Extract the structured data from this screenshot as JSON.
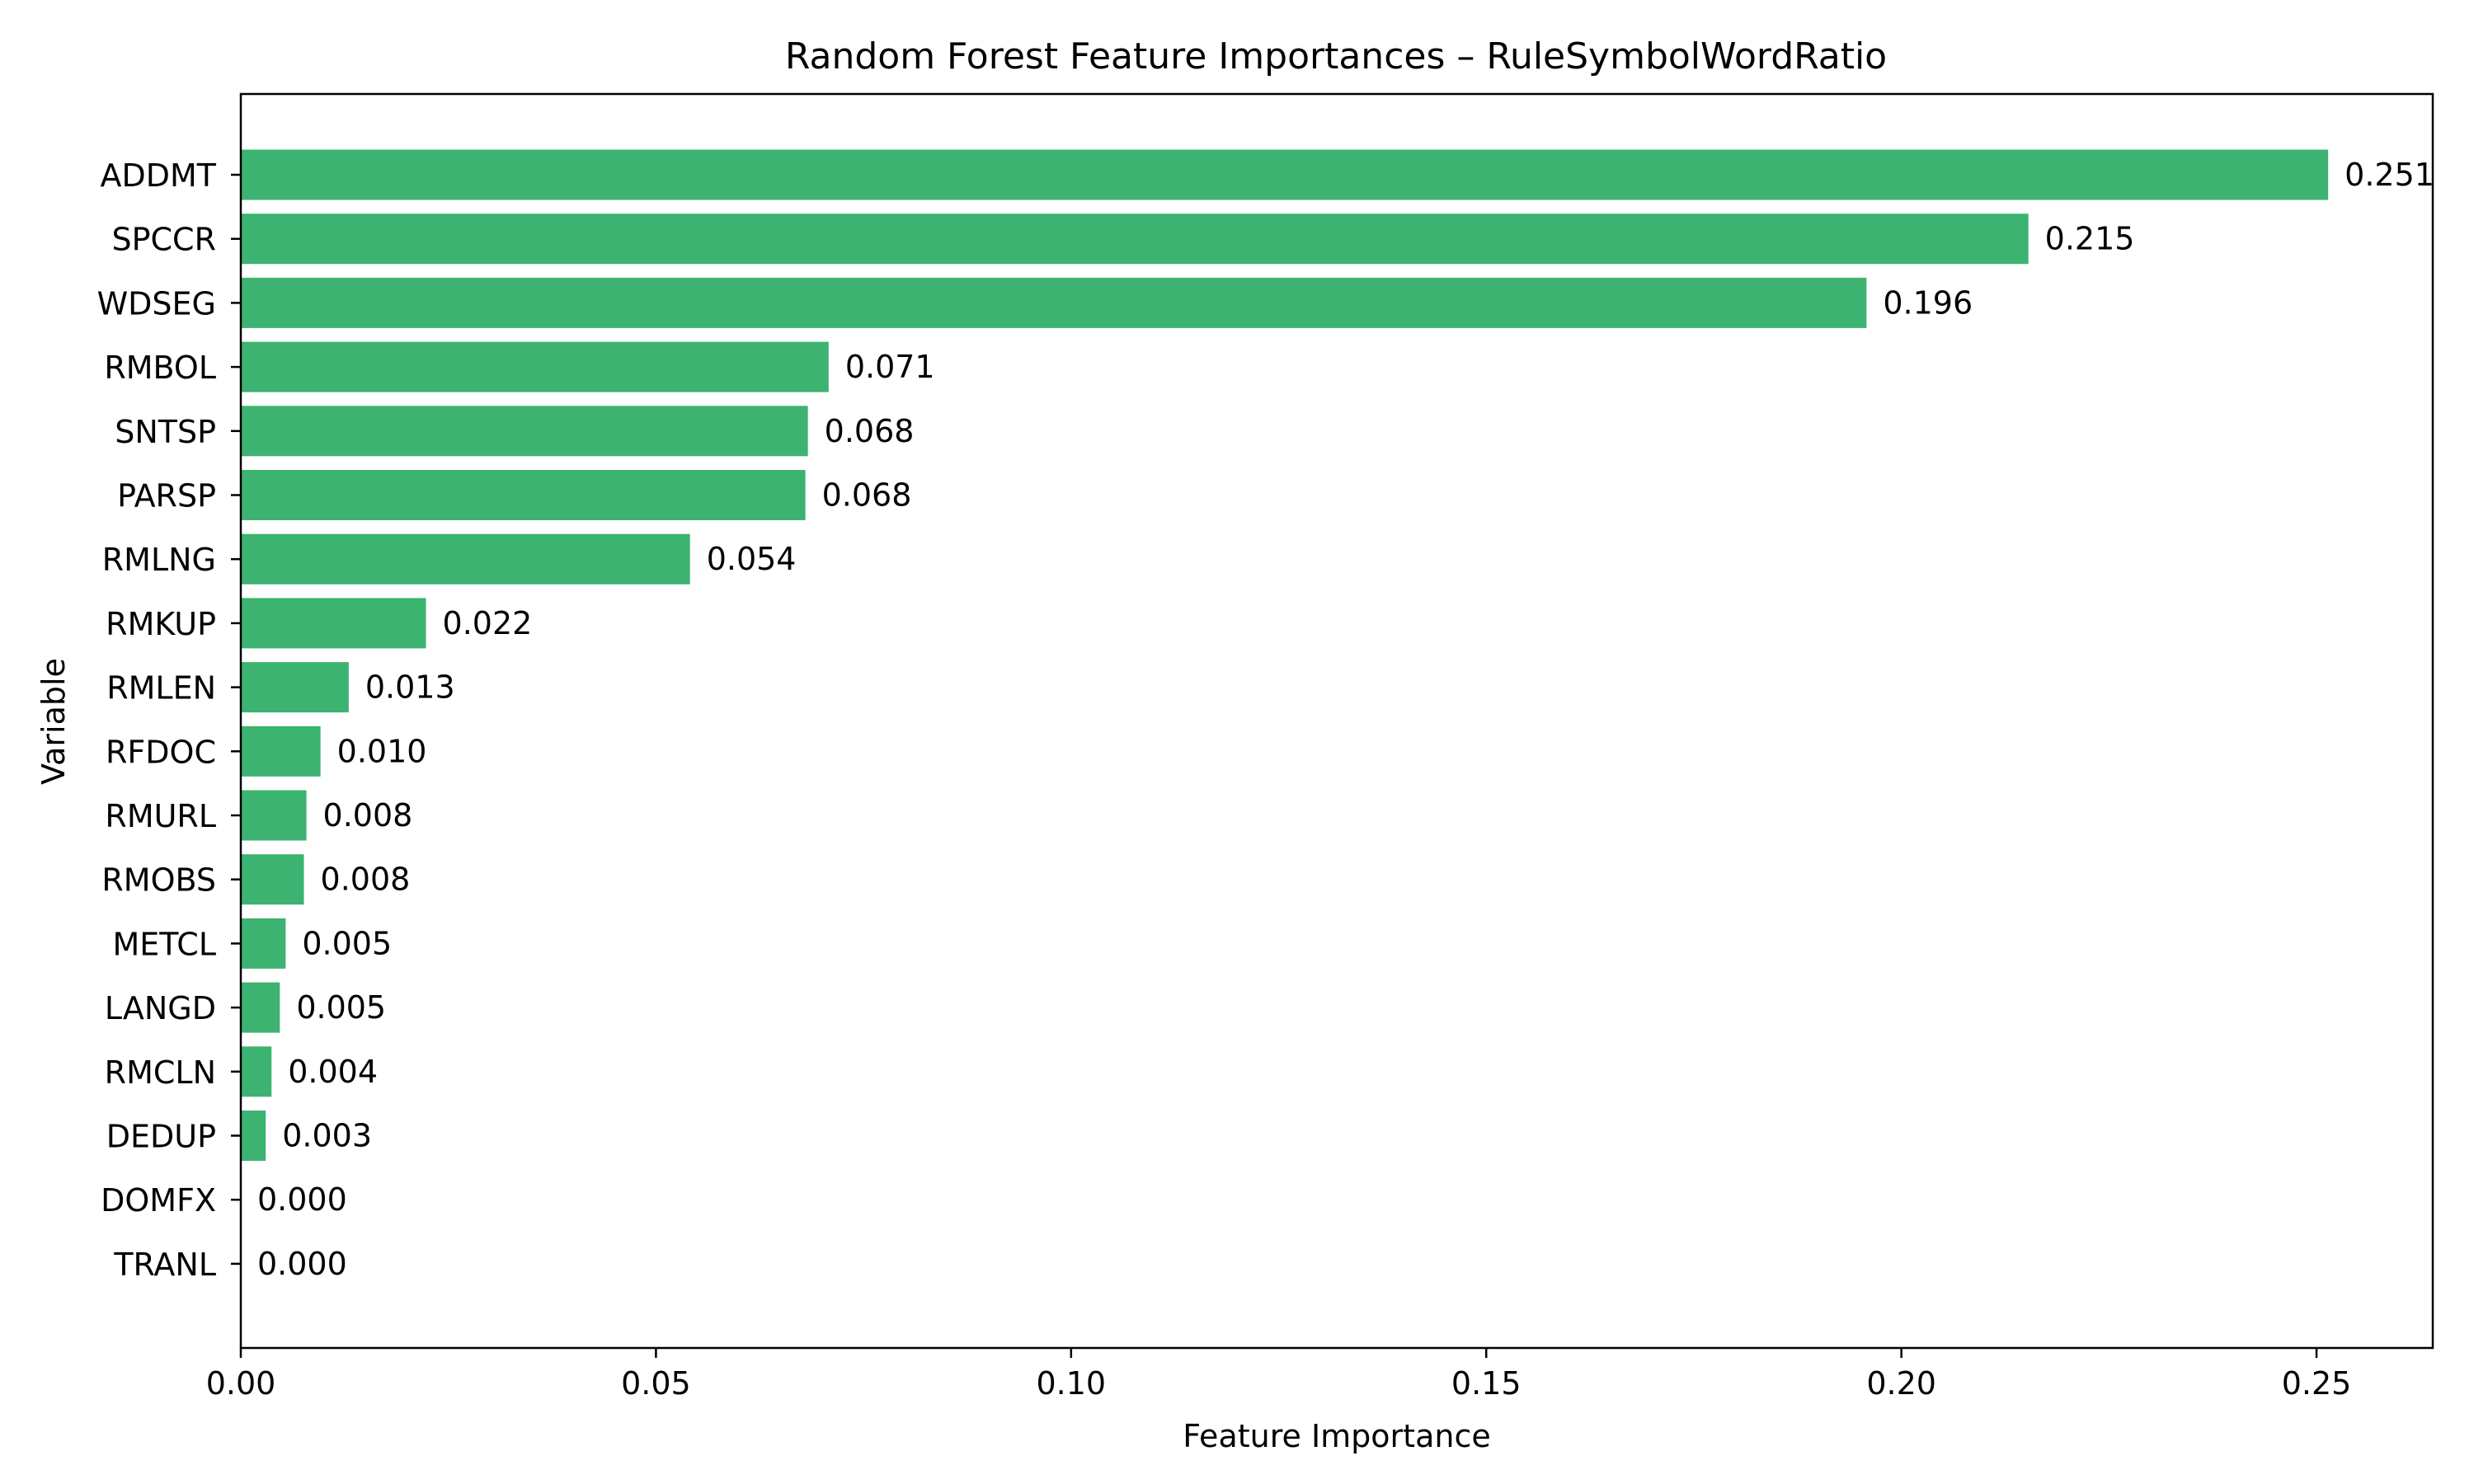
{
  "chart_data": {
    "type": "bar",
    "orientation": "horizontal",
    "title": "Random Forest Feature Importances – RuleSymbolWordRatio",
    "xlabel": "Feature Importance",
    "ylabel": "Variable",
    "categories": [
      "ADDMT",
      "SPCCR",
      "WDSEG",
      "RMBOL",
      "SNTSP",
      "PARSP",
      "RMLNG",
      "RMKUP",
      "RMLEN",
      "RFDOC",
      "RMURL",
      "RMOBS",
      "METCL",
      "LANGD",
      "RMCLN",
      "DEDUP",
      "DOMFX",
      "TRANL"
    ],
    "values": [
      0.2514,
      0.2153,
      0.1958,
      0.0708,
      0.0683,
      0.068,
      0.0541,
      0.0223,
      0.013,
      0.0096,
      0.0079,
      0.0076,
      0.0054,
      0.0047,
      0.0037,
      0.003,
      0.0,
      0.0
    ],
    "value_labels": [
      "0.251",
      "0.215",
      "0.196",
      "0.071",
      "0.068",
      "0.068",
      "0.054",
      "0.022",
      "0.013",
      "0.010",
      "0.008",
      "0.008",
      "0.005",
      "0.005",
      "0.004",
      "0.003",
      "0.000",
      "0.000"
    ],
    "xlim": [
      0,
      0.264
    ],
    "xticks": [
      0,
      0.05,
      0.1,
      0.15,
      0.2,
      0.25
    ],
    "xtick_labels": [
      "0.00",
      "0.05",
      "0.10",
      "0.15",
      "0.20",
      "0.25"
    ],
    "bar_color": "#3cb371",
    "grid": false,
    "legend": "none"
  }
}
